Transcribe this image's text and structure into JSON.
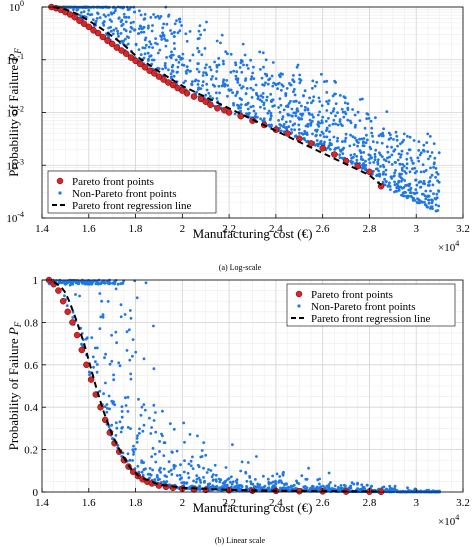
{
  "chart_data": [
    {
      "type": "scatter",
      "yscale": "log",
      "caption": "(a) Log-scale",
      "xlabel": "Manufacturing cost (€)",
      "ylabel": "Probability of Failure P_F",
      "ylabel_parts": {
        "main": "Probability of Failure ",
        "var": "P",
        "sub": "F"
      },
      "x_multiplier": "×10",
      "x_multiplier_exp": "4",
      "xlim": [
        1.4,
        3.2
      ],
      "ylim": [
        0.0001,
        1
      ],
      "xticks": [
        1.4,
        1.6,
        1.8,
        2.0,
        2.2,
        2.4,
        2.6,
        2.8,
        3.0,
        3.2
      ],
      "xtick_labels": [
        "1.4",
        "1.6",
        "1.8",
        "2",
        "2.2",
        "2.4",
        "2.6",
        "2.8",
        "3",
        "3.2"
      ],
      "yticks": [
        {
          "value": 0.0001,
          "base": "10",
          "exp": "-4"
        },
        {
          "value": 0.001,
          "base": "10",
          "exp": "-3"
        },
        {
          "value": 0.01,
          "base": "10",
          "exp": "-2"
        },
        {
          "value": 0.1,
          "base": "10",
          "exp": "-1"
        },
        {
          "value": 1,
          "base": "10",
          "exp": "0"
        }
      ],
      "grid": true,
      "legend_position": "bottom-left",
      "legend": [
        "Pareto front points",
        "Non-Pareto front points",
        "Pareto front regression line"
      ],
      "series": [
        {
          "name": "Pareto front points",
          "kind": "pareto",
          "color": "#d62728",
          "x": [
            1.44,
            1.46,
            1.48,
            1.5,
            1.52,
            1.54,
            1.56,
            1.58,
            1.6,
            1.62,
            1.64,
            1.66,
            1.68,
            1.7,
            1.72,
            1.74,
            1.76,
            1.78,
            1.8,
            1.82,
            1.84,
            1.86,
            1.88,
            1.9,
            1.92,
            1.94,
            1.96,
            1.98,
            2.0,
            2.02,
            2.05,
            2.08,
            2.1,
            2.12,
            2.15,
            2.18,
            2.2,
            2.25,
            2.3,
            2.35,
            2.4,
            2.45,
            2.5,
            2.55,
            2.6,
            2.65,
            2.7,
            2.75,
            2.8,
            2.85
          ],
          "y": [
            1.0,
            0.95,
            0.88,
            0.8,
            0.72,
            0.64,
            0.55,
            0.48,
            0.42,
            0.36,
            0.32,
            0.27,
            0.23,
            0.2,
            0.17,
            0.15,
            0.13,
            0.11,
            0.095,
            0.083,
            0.072,
            0.062,
            0.055,
            0.048,
            0.042,
            0.037,
            0.033,
            0.029,
            0.026,
            0.023,
            0.02,
            0.018,
            0.016,
            0.014,
            0.012,
            0.011,
            0.01,
            0.0085,
            0.007,
            0.0058,
            0.0047,
            0.004,
            0.0032,
            0.0026,
            0.0021,
            0.0016,
            0.0012,
            0.00095,
            0.00075,
            0.0004
          ]
        },
        {
          "name": "Non-Pareto front points",
          "kind": "cloud",
          "color": "#1f77e4",
          "n": 1300,
          "spread_decades": 1.6
        },
        {
          "name": "Pareto front regression line",
          "kind": "regression",
          "color": "#000000",
          "x": [
            1.45,
            1.5,
            1.55,
            1.6,
            1.65,
            1.7,
            1.75,
            1.8,
            1.9,
            2.0,
            2.2,
            2.4,
            2.6,
            2.8,
            2.85
          ],
          "y": [
            0.99,
            0.9,
            0.74,
            0.55,
            0.4,
            0.28,
            0.19,
            0.12,
            0.06,
            0.032,
            0.012,
            0.0045,
            0.0017,
            0.00065,
            0.00042
          ]
        }
      ]
    },
    {
      "type": "scatter",
      "yscale": "linear",
      "caption": "(b) Linear scale",
      "xlabel": "Manufacturing cost (€)",
      "ylabel": "Probability of Failure P_F",
      "ylabel_parts": {
        "main": "Probability of Failure ",
        "var": "P",
        "sub": "F"
      },
      "x_multiplier": "×10",
      "x_multiplier_exp": "4",
      "xlim": [
        1.4,
        3.2
      ],
      "ylim": [
        0,
        1
      ],
      "xticks": [
        1.4,
        1.6,
        1.8,
        2.0,
        2.2,
        2.4,
        2.6,
        2.8,
        3.0,
        3.2
      ],
      "xtick_labels": [
        "1.4",
        "1.6",
        "1.8",
        "2",
        "2.2",
        "2.4",
        "2.6",
        "2.8",
        "3",
        "3.2"
      ],
      "yticks": [
        0,
        0.2,
        0.4,
        0.6,
        0.8,
        1
      ],
      "ytick_labels": [
        "0",
        "0.2",
        "0.4",
        "0.6",
        "0.8",
        "1"
      ],
      "grid": true,
      "legend_position": "top-right",
      "legend": [
        "Pareto front points",
        "Non-Pareto front points",
        "Pareto front regression line"
      ],
      "series": [
        {
          "name": "Pareto front points",
          "kind": "pareto",
          "color": "#d62728",
          "x": [
            1.43,
            1.45,
            1.47,
            1.49,
            1.51,
            1.53,
            1.55,
            1.57,
            1.59,
            1.61,
            1.63,
            1.65,
            1.67,
            1.69,
            1.71,
            1.73,
            1.75,
            1.77,
            1.79,
            1.81,
            1.83,
            1.85,
            1.87,
            1.9,
            1.93,
            1.96,
            2.0,
            2.05,
            2.1,
            2.2,
            2.3,
            2.4,
            2.5,
            2.6,
            2.7,
            2.8,
            2.85
          ],
          "y": [
            1.0,
            0.98,
            0.95,
            0.9,
            0.85,
            0.8,
            0.74,
            0.67,
            0.6,
            0.53,
            0.46,
            0.4,
            0.34,
            0.28,
            0.23,
            0.19,
            0.15,
            0.12,
            0.095,
            0.075,
            0.06,
            0.048,
            0.04,
            0.03,
            0.024,
            0.02,
            0.016,
            0.012,
            0.01,
            0.008,
            0.006,
            0.005,
            0.004,
            0.003,
            0.002,
            0.0015,
            0.001
          ]
        },
        {
          "name": "Non-Pareto front points",
          "kind": "cloud",
          "color": "#1f77e4",
          "n": 1300,
          "spread_decades": 1.6
        },
        {
          "name": "Pareto front regression line",
          "kind": "regression",
          "color": "#000000",
          "x": [
            1.45,
            1.48,
            1.5,
            1.52,
            1.55,
            1.58,
            1.6,
            1.63,
            1.66,
            1.7,
            1.74,
            1.78,
            1.82,
            1.9,
            2.0,
            2.2,
            2.4,
            2.6,
            2.85
          ],
          "y": [
            0.99,
            0.97,
            0.94,
            0.89,
            0.8,
            0.7,
            0.62,
            0.5,
            0.39,
            0.27,
            0.18,
            0.11,
            0.07,
            0.035,
            0.02,
            0.01,
            0.006,
            0.004,
            0.002
          ]
        }
      ]
    }
  ]
}
